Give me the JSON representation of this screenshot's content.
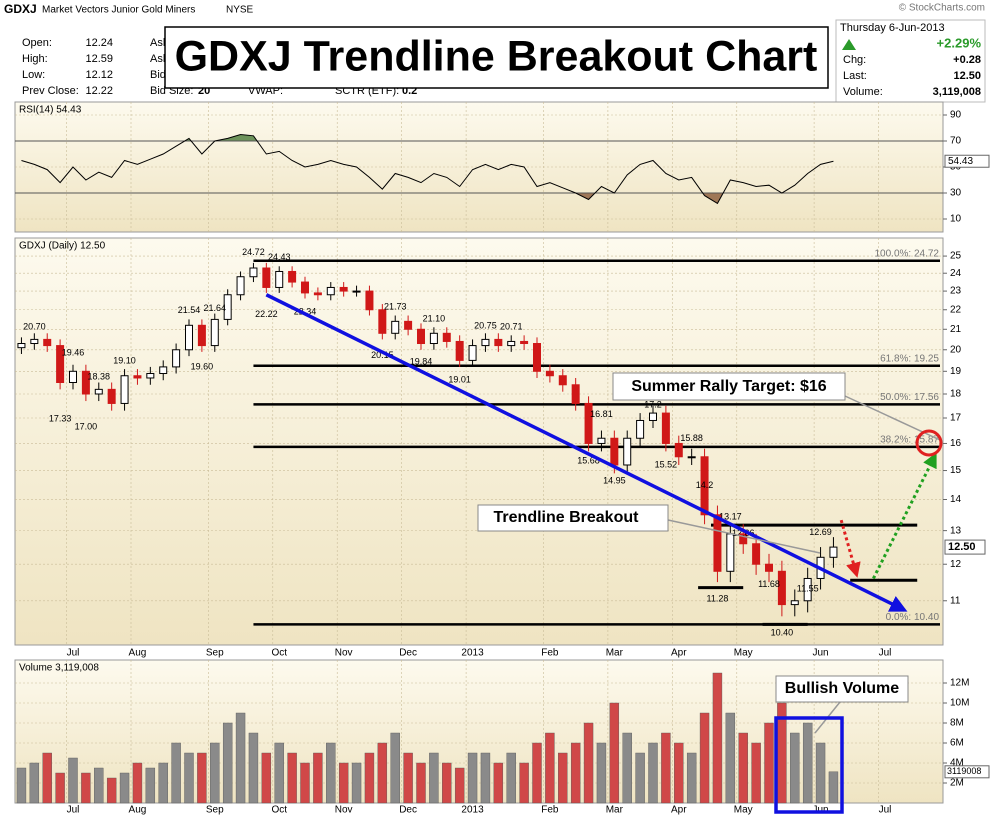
{
  "header": {
    "symbol": "GDXJ",
    "name": "Market Vectors Junior Gold Miners",
    "exchange": "NYSE",
    "title": "GDXJ Trendline Breakout Chart",
    "copyright": "© StockCharts.com",
    "quote": [
      [
        "Open:",
        "12.24"
      ],
      [
        "High:",
        "12.59"
      ],
      [
        "Low:",
        "12.12"
      ],
      [
        "Prev Close:",
        "12.22"
      ]
    ],
    "quote2": [
      "Ask",
      "Ask",
      "Bid:"
    ],
    "bid_size": [
      "Bid Size:",
      "20"
    ],
    "vwap": "VWAP:",
    "sctr": [
      "SCTR (ETF):",
      "0.2"
    ],
    "date": "Thursday  6-Jun-2013",
    "change_pct": "+2.29%",
    "summary": [
      [
        "Chg:",
        "+0.28"
      ],
      [
        "Last:",
        "12.50"
      ],
      [
        "Volume:",
        "3,119,008"
      ]
    ]
  },
  "chart_data": [
    {
      "type": "line",
      "label": "RSI(14) 54.43",
      "color": "#000000",
      "values": [
        55,
        52,
        48,
        38,
        50,
        40,
        46,
        42,
        55,
        52,
        56,
        60,
        66,
        72,
        60,
        70,
        72,
        75,
        74,
        60,
        62,
        55,
        50,
        52,
        55,
        52,
        50,
        42,
        33,
        45,
        42,
        38,
        45,
        42,
        35,
        48,
        52,
        48,
        52,
        50,
        35,
        38,
        34,
        30,
        25,
        35,
        30,
        44,
        52,
        55,
        45,
        40,
        42,
        28,
        22,
        40,
        38,
        35,
        36,
        30,
        36,
        45,
        52,
        54.43,
        null,
        null,
        null,
        null,
        null,
        null,
        null,
        null
      ],
      "last_value_label": "54.43",
      "ylim": [
        0,
        100
      ],
      "yticks": [
        10,
        30,
        50,
        70,
        90
      ],
      "overbought": 70,
      "oversold": 30,
      "overbought_color": "#4a7a3a",
      "oversold_color": "#8a5a3a"
    },
    {
      "type": "candlestick",
      "label": "GDXJ (Daily) 12.50",
      "log_scale": true,
      "grid": true,
      "categories": [
        null,
        null,
        null,
        null,
        "Jul",
        null,
        null,
        null,
        null,
        "Aug",
        null,
        null,
        null,
        null,
        null,
        "Sep",
        null,
        null,
        null,
        null,
        "Oct",
        null,
        null,
        null,
        null,
        "Nov",
        null,
        null,
        null,
        null,
        "Dec",
        null,
        null,
        null,
        null,
        "2013",
        null,
        null,
        null,
        null,
        null,
        "Feb",
        null,
        null,
        null,
        null,
        "Mar",
        null,
        null,
        null,
        null,
        "Apr",
        null,
        null,
        null,
        null,
        "May",
        null,
        null,
        null,
        null,
        null,
        "Jun",
        null,
        null,
        null,
        null,
        "Jul",
        null,
        null,
        null,
        null
      ],
      "open": [
        20.1,
        20.3,
        20.5,
        20.2,
        18.5,
        19.0,
        18.0,
        18.2,
        17.6,
        18.8,
        18.7,
        18.9,
        19.2,
        20.0,
        21.2,
        20.2,
        21.5,
        22.8,
        23.8,
        24.3,
        23.2,
        24.1,
        23.5,
        22.9,
        22.8,
        23.2,
        23.0,
        23.0,
        22.0,
        20.8,
        21.4,
        21.0,
        20.3,
        20.8,
        20.4,
        19.5,
        20.2,
        20.5,
        20.2,
        20.4,
        20.3,
        19.0,
        18.8,
        18.4,
        17.6,
        16.0,
        16.2,
        15.2,
        16.2,
        16.9,
        17.2,
        16.0,
        15.5,
        15.5,
        13.5,
        11.8,
        12.9,
        12.6,
        12.0,
        11.8,
        10.9,
        11.0,
        11.6,
        12.2,
        null,
        null,
        null,
        null,
        null,
        null,
        null,
        null
      ],
      "high": [
        20.6,
        20.8,
        20.8,
        20.5,
        19.3,
        19.3,
        18.5,
        18.5,
        19.1,
        19.1,
        19.2,
        19.5,
        20.3,
        21.5,
        21.5,
        21.8,
        23.1,
        24.1,
        24.6,
        24.6,
        24.4,
        24.4,
        23.8,
        23.2,
        23.5,
        23.5,
        23.3,
        23.3,
        22.3,
        21.7,
        21.7,
        21.3,
        21.1,
        21.1,
        20.7,
        20.5,
        20.8,
        20.8,
        20.7,
        20.7,
        20.6,
        19.3,
        19.1,
        18.7,
        17.9,
        16.5,
        16.5,
        16.5,
        17.2,
        17.5,
        17.5,
        16.3,
        15.8,
        15.8,
        13.8,
        13.2,
        13.2,
        12.9,
        12.3,
        12.1,
        11.3,
        11.9,
        12.5,
        12.8,
        null,
        null,
        null,
        null,
        null,
        null,
        null,
        null
      ],
      "low": [
        19.8,
        20.0,
        19.9,
        18.2,
        18.2,
        17.7,
        17.7,
        17.3,
        17.3,
        18.4,
        18.4,
        18.6,
        18.9,
        19.7,
        19.9,
        19.9,
        21.2,
        22.5,
        23.5,
        22.9,
        22.9,
        23.2,
        22.6,
        22.5,
        22.5,
        22.7,
        22.7,
        21.7,
        20.5,
        20.5,
        20.7,
        20.0,
        20.0,
        20.1,
        19.2,
        19.2,
        19.9,
        19.9,
        19.9,
        20.0,
        18.7,
        18.5,
        18.1,
        17.3,
        15.7,
        15.7,
        14.9,
        14.9,
        15.9,
        16.6,
        15.7,
        15.2,
        15.2,
        13.2,
        11.5,
        11.5,
        12.3,
        11.7,
        11.5,
        10.6,
        10.6,
        10.7,
        11.3,
        11.9,
        null,
        null,
        null,
        null,
        null,
        null,
        null,
        null
      ],
      "close": [
        20.3,
        20.5,
        20.2,
        18.5,
        19.0,
        18.0,
        18.2,
        17.6,
        18.8,
        18.7,
        18.9,
        19.2,
        20.0,
        21.2,
        20.2,
        21.5,
        22.8,
        23.8,
        24.3,
        23.2,
        24.1,
        23.5,
        22.9,
        22.8,
        23.2,
        23.0,
        23.0,
        22.0,
        20.8,
        21.4,
        21.0,
        20.3,
        20.8,
        20.4,
        19.5,
        20.2,
        20.5,
        20.2,
        20.4,
        20.3,
        19.0,
        18.8,
        18.4,
        17.6,
        16.0,
        16.2,
        15.2,
        16.2,
        16.9,
        17.2,
        16.0,
        15.5,
        15.5,
        13.5,
        11.8,
        12.9,
        12.6,
        12.0,
        11.8,
        10.9,
        11.0,
        11.6,
        12.2,
        12.5,
        null,
        null,
        null,
        null,
        null,
        null,
        null,
        null
      ],
      "up_color": "#000000",
      "down_color": "#d01818",
      "last_value_label": "12.50",
      "ylim": [
        9.9,
        26.1
      ],
      "yticks": [
        11,
        12,
        13,
        14,
        15,
        16,
        17,
        18,
        19,
        20,
        21,
        22,
        23,
        24,
        25
      ],
      "point_labels": [
        {
          "index": 1,
          "value": 20.7,
          "label": "20.70"
        },
        {
          "index": 3,
          "value": 17.33,
          "label": "17.33"
        },
        {
          "index": 4,
          "value": 19.46,
          "label": "19.46"
        },
        {
          "index": 5,
          "value": 17.0,
          "label": "17.00"
        },
        {
          "index": 6,
          "value": 18.38,
          "label": "18.38"
        },
        {
          "index": 8,
          "value": 19.1,
          "label": "19.10"
        },
        {
          "index": 13,
          "value": 21.54,
          "label": "21.54"
        },
        {
          "index": 14,
          "value": 19.6,
          "label": "19.60"
        },
        {
          "index": 15,
          "value": 21.64,
          "label": "21.64"
        },
        {
          "index": 18,
          "value": 24.72,
          "label": "24.72"
        },
        {
          "index": 19,
          "value": 22.22,
          "label": "22.22"
        },
        {
          "index": 20,
          "value": 24.43,
          "label": "24.43"
        },
        {
          "index": 22,
          "value": 22.34,
          "label": "22.34"
        },
        {
          "index": 28,
          "value": 20.15,
          "label": "20.15"
        },
        {
          "index": 29,
          "value": 21.73,
          "label": "21.73"
        },
        {
          "index": 31,
          "value": 19.84,
          "label": "19.84"
        },
        {
          "index": 32,
          "value": 21.1,
          "label": "21.10"
        },
        {
          "index": 34,
          "value": 19.01,
          "label": "19.01"
        },
        {
          "index": 36,
          "value": 20.75,
          "label": "20.75"
        },
        {
          "index": 38,
          "value": 20.71,
          "label": "20.71"
        },
        {
          "index": 44,
          "value": 15.68,
          "label": "15.68"
        },
        {
          "index": 45,
          "value": 16.81,
          "label": "16.81"
        },
        {
          "index": 46,
          "value": 14.95,
          "label": "14.95"
        },
        {
          "index": 49,
          "value": 17.2,
          "label": "17.2"
        },
        {
          "index": 50,
          "value": 15.52,
          "label": "15.52"
        },
        {
          "index": 52,
          "value": 15.88,
          "label": "15.88"
        },
        {
          "index": 53,
          "value": 14.2,
          "label": "14.2"
        },
        {
          "index": 54,
          "value": 11.28,
          "label": "11.28"
        },
        {
          "index": 55,
          "value": 13.17,
          "label": "13.17"
        },
        {
          "index": 56,
          "value": 12.66,
          "label": "12.66"
        },
        {
          "index": 58,
          "value": 11.68,
          "label": "11.68"
        },
        {
          "index": 59,
          "value": 10.4,
          "label": "10.40"
        },
        {
          "index": 61,
          "value": 11.55,
          "label": "11.55"
        },
        {
          "index": 62,
          "value": 12.69,
          "label": "12.69"
        }
      ],
      "fib_levels": [
        {
          "value": 24.72,
          "label": "100.0%: 24.72"
        },
        {
          "value": 19.25,
          "label": "61.8%: 19.25"
        },
        {
          "value": 17.56,
          "label": "50.0%: 17.56"
        },
        {
          "value": 15.87,
          "label": "38.2%: 15.87"
        },
        {
          "value": 10.4,
          "label": "0.0%: 10.40"
        }
      ],
      "support_lines": [
        {
          "value": 13.17,
          "from": 53.5,
          "to": 69.5
        },
        {
          "value": 11.35,
          "from": 52.5,
          "to": 56
        },
        {
          "value": 10.4,
          "from": 57.5,
          "to": 61
        },
        {
          "value": 11.55,
          "from": 64.3,
          "to": 69.5
        }
      ],
      "trendline": {
        "from": [
          19,
          22.8
        ],
        "to": [
          68.5,
          10.76
        ],
        "color": "#1010e0"
      },
      "arrows": [
        {
          "from": [
            63.6,
            13.33
          ],
          "to": [
            64.8,
            11.7
          ],
          "color": "#e02020"
        },
        {
          "from": [
            66.1,
            11.6
          ],
          "to": [
            70.9,
            15.56
          ],
          "color": "#20a020"
        }
      ],
      "callouts": [
        "Summer Rally Target: $16",
        "Trendline Breakout"
      ]
    },
    {
      "type": "bar",
      "label": "Volume 3,119,008",
      "categories": [
        null,
        null,
        null,
        null,
        "Jul",
        null,
        null,
        null,
        null,
        "Aug",
        null,
        null,
        null,
        null,
        null,
        "Sep",
        null,
        null,
        null,
        null,
        "Oct",
        null,
        null,
        null,
        null,
        "Nov",
        null,
        null,
        null,
        null,
        "Dec",
        null,
        null,
        null,
        null,
        "2013",
        null,
        null,
        null,
        null,
        null,
        "Feb",
        null,
        null,
        null,
        null,
        "Mar",
        null,
        null,
        null,
        null,
        "Apr",
        null,
        null,
        null,
        null,
        "May",
        null,
        null,
        null,
        null,
        null,
        "Jun",
        null,
        null,
        null,
        null,
        "Jul",
        null,
        null,
        null,
        null
      ],
      "values": [
        3500000,
        4000000,
        5000000,
        3000000,
        4500000,
        3000000,
        3500000,
        2500000,
        3000000,
        4000000,
        3500000,
        4000000,
        6000000,
        5000000,
        5000000,
        6000000,
        8000000,
        9000000,
        7000000,
        5000000,
        6000000,
        5000000,
        4000000,
        5000000,
        6000000,
        4000000,
        4000000,
        5000000,
        6000000,
        7000000,
        5000000,
        4000000,
        5000000,
        4000000,
        3500000,
        5000000,
        5000000,
        4000000,
        5000000,
        4000000,
        6000000,
        7000000,
        5000000,
        6000000,
        8000000,
        6000000,
        10000000,
        7000000,
        5000000,
        6000000,
        7000000,
        6000000,
        5000000,
        9000000,
        13000000,
        9000000,
        7000000,
        6000000,
        8000000,
        10000000,
        7000000,
        8000000,
        6000000,
        3119008,
        null,
        null,
        null,
        null,
        null,
        null,
        null,
        null
      ],
      "up_color": "#8a8a8a",
      "down_color": "#d04848",
      "last_value_label": "3119008",
      "ylim": [
        0,
        14300000
      ],
      "yticks": [
        {
          "value": 2000000,
          "label": "2M"
        },
        {
          "value": 4000000,
          "label": "4M"
        },
        {
          "value": 6000000,
          "label": "6M"
        },
        {
          "value": 8000000,
          "label": "8M"
        },
        {
          "value": 10000000,
          "label": "10M"
        },
        {
          "value": 12000000,
          "label": "12M"
        }
      ],
      "callout": "Bullish Volume"
    }
  ]
}
